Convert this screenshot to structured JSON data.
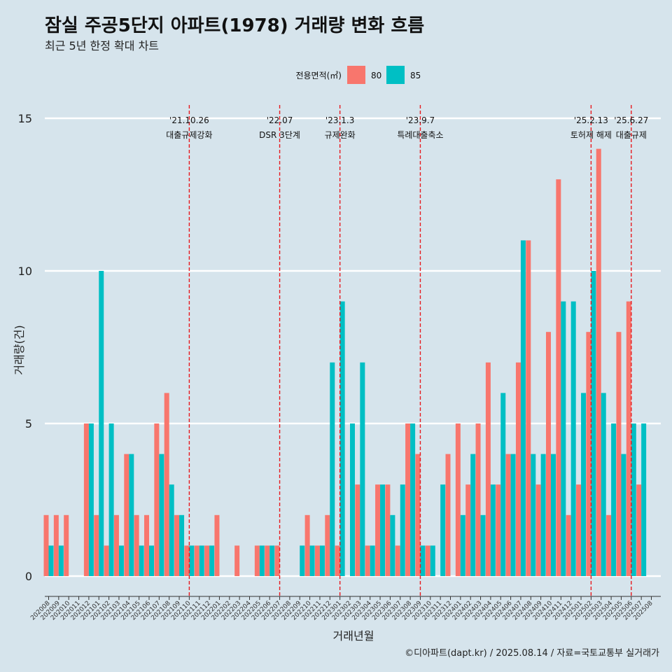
{
  "header": {
    "title": "잠실 주공5단지 아파트(1978) 거래량 변화 흐름",
    "subtitle": "최근 5년 한정 확대 차트"
  },
  "footer": {
    "credit": "©디아파트(dapt.kr) / 2025.08.14 / 자료=국토교통부 실거래가"
  },
  "colors": {
    "s80": "#f8766d",
    "s85": "#00bfc4",
    "vline": "#e8191e",
    "grid": "#ffffff"
  },
  "chart_data": {
    "type": "bar",
    "title": "잠실 주공5단지 아파트(1978) 거래량 변화 흐름",
    "subtitle": "최근 5년 한정 확대 차트",
    "xlabel": "거래년월",
    "ylabel": "거래량(건)",
    "ylim": [
      0,
      15
    ],
    "yticks": [
      "0",
      "5",
      "10",
      "15"
    ],
    "legend": {
      "title": "전용면적(㎡)",
      "position": "top"
    },
    "categories": [
      "202008",
      "202009",
      "202010",
      "202011",
      "202012",
      "202101",
      "202102",
      "202103",
      "202104",
      "202105",
      "202106",
      "202107",
      "202108",
      "202109",
      "202110",
      "202111",
      "202112",
      "202201",
      "202202",
      "202203",
      "202204",
      "202205",
      "202206",
      "202207",
      "202208",
      "202209",
      "202210",
      "202211",
      "202212",
      "202301",
      "202302",
      "202303",
      "202304",
      "202305",
      "202306",
      "202307",
      "202308",
      "202309",
      "202310",
      "202311",
      "202312",
      "202401",
      "202402",
      "202403",
      "202404",
      "202405",
      "202406",
      "202407",
      "202408",
      "202409",
      "202410",
      "202411",
      "202412",
      "202501",
      "202502",
      "202503",
      "202504",
      "202505",
      "202506",
      "202507",
      "202508"
    ],
    "series": [
      {
        "name": "80",
        "values": [
          2,
          2,
          2,
          0,
          5,
          2,
          1,
          2,
          4,
          2,
          2,
          5,
          6,
          2,
          1,
          1,
          1,
          2,
          0,
          1,
          0,
          1,
          1,
          1,
          0,
          0,
          2,
          1,
          2,
          1,
          0,
          3,
          1,
          3,
          3,
          1,
          5,
          4,
          1,
          0,
          4,
          5,
          3,
          5,
          7,
          3,
          4,
          7,
          11,
          3,
          8,
          13,
          2,
          3,
          8,
          14,
          2,
          8,
          9,
          3,
          0
        ]
      },
      {
        "name": "85",
        "values": [
          1,
          1,
          0,
          0,
          5,
          10,
          5,
          1,
          4,
          1,
          1,
          4,
          3,
          2,
          1,
          1,
          1,
          0,
          0,
          0,
          0,
          1,
          1,
          0,
          0,
          1,
          1,
          1,
          7,
          9,
          5,
          7,
          1,
          3,
          2,
          3,
          5,
          1,
          1,
          3,
          0,
          2,
          4,
          2,
          3,
          6,
          4,
          11,
          4,
          4,
          4,
          9,
          9,
          6,
          10,
          6,
          5,
          4,
          5,
          5,
          0
        ]
      }
    ],
    "annotations": [
      {
        "x": "202110",
        "date": "'21.10.26",
        "text": "대출규제강화"
      },
      {
        "x": "202207",
        "date": "'22.07",
        "text": "DSR 3단계"
      },
      {
        "x": "202301",
        "date": "'23.1.3",
        "text": "규제완화"
      },
      {
        "x": "202309",
        "date": "'23.9.7",
        "text": "특례대출축소"
      },
      {
        "x": "202502",
        "date": "'25.2.13",
        "text": "토허제 해제"
      },
      {
        "x": "202506",
        "date": "'25.6.27",
        "text": "대출규제"
      }
    ]
  }
}
